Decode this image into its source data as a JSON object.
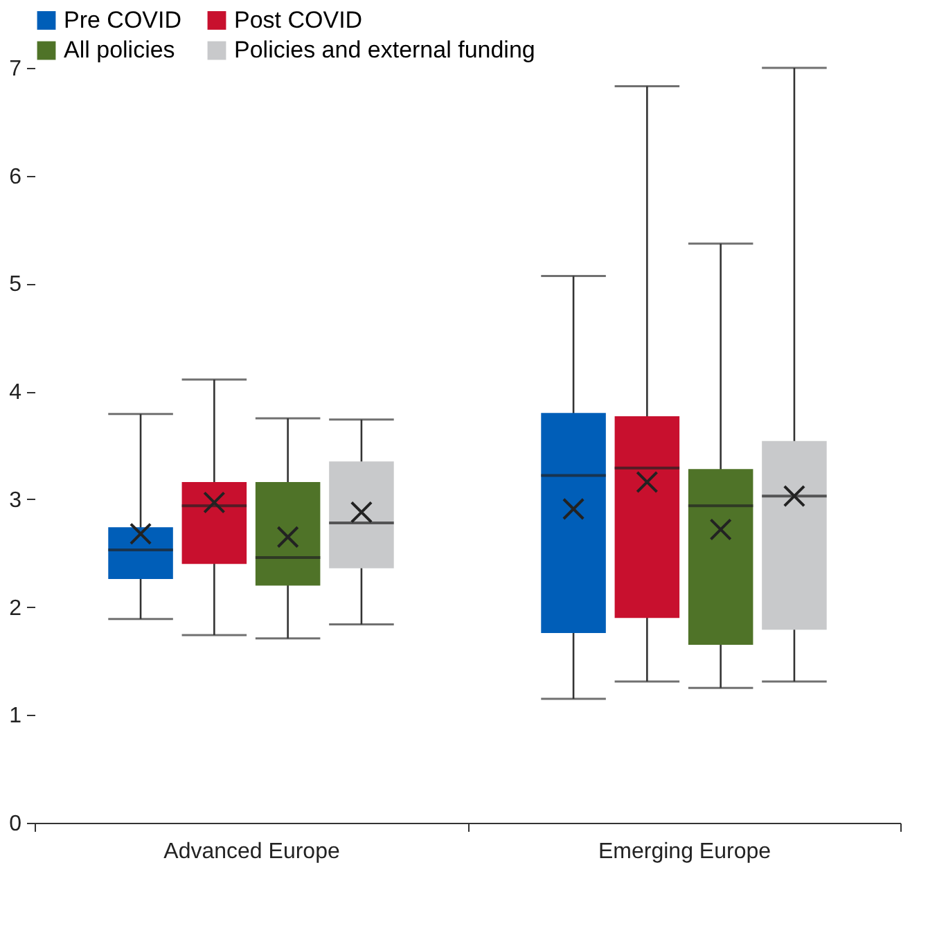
{
  "chart_data": {
    "type": "box",
    "categories": [
      "Advanced Europe",
      "Emerging Europe"
    ],
    "ylim": [
      0,
      7
    ],
    "yticks": [
      0,
      1,
      2,
      3,
      4,
      5,
      6,
      7
    ],
    "legend": "top left",
    "grid": false,
    "series": [
      {
        "name": "Pre COVID",
        "color": "#005eb8",
        "boxes": [
          {
            "low": 1.89,
            "q1": 2.26,
            "median": 2.53,
            "q3": 2.74,
            "high": 3.79,
            "mean": 2.68
          },
          {
            "low": 1.15,
            "q1": 1.76,
            "median": 3.22,
            "q3": 3.8,
            "high": 5.07,
            "mean": 2.91
          }
        ]
      },
      {
        "name": "Post COVID",
        "color": "#c8102e",
        "boxes": [
          {
            "low": 1.74,
            "q1": 2.4,
            "median": 2.94,
            "q3": 3.16,
            "high": 4.11,
            "mean": 2.97
          },
          {
            "low": 1.31,
            "q1": 1.9,
            "median": 3.29,
            "q3": 3.77,
            "high": 6.83,
            "mean": 3.16
          }
        ]
      },
      {
        "name": "All policies",
        "color": "#4f7328",
        "boxes": [
          {
            "low": 1.71,
            "q1": 2.2,
            "median": 2.46,
            "q3": 3.16,
            "high": 3.75,
            "mean": 2.65
          },
          {
            "low": 1.25,
            "q1": 1.65,
            "median": 2.94,
            "q3": 3.28,
            "high": 5.37,
            "mean": 2.72
          }
        ]
      },
      {
        "name": "Policies and external funding",
        "color": "#c8c9cb",
        "boxes": [
          {
            "low": 1.84,
            "q1": 2.36,
            "median": 2.78,
            "q3": 3.35,
            "high": 3.74,
            "mean": 2.88
          },
          {
            "low": 1.31,
            "q1": 1.79,
            "median": 3.03,
            "q3": 3.54,
            "high": 7.0,
            "mean": 3.03
          }
        ]
      }
    ]
  }
}
